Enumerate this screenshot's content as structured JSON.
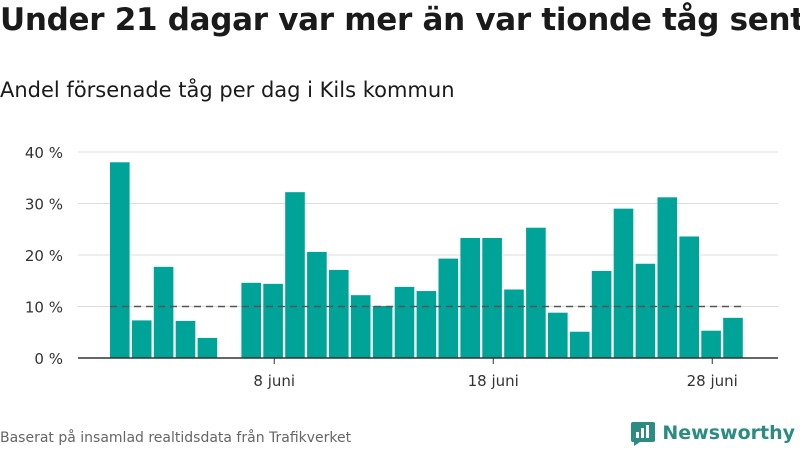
{
  "title": "Under 21 dagar var mer än var tionde tåg sent",
  "subtitle": "Andel försenade tåg per dag i Kils kommun",
  "source": "Baserat på insamlad realtidsdata från Trafikverket",
  "brand": "Newsworthy",
  "colors": {
    "bar": "#00a398",
    "grid": "#dddddd",
    "axis": "#333333",
    "reference": "#555555",
    "brand": "#2b8c81"
  },
  "chart_data": {
    "type": "bar",
    "x_start_day": 1,
    "x_month_label": "juni",
    "x_tick_days": [
      8,
      18,
      28
    ],
    "x_tick_labels": [
      "8 juni",
      "18 juni",
      "28 juni"
    ],
    "values": [
      38,
      7.3,
      17.7,
      7.2,
      3.9,
      null,
      14.6,
      14.4,
      32.2,
      20.6,
      17.1,
      12.2,
      10.1,
      13.8,
      13.0,
      19.3,
      23.3,
      23.3,
      13.3,
      25.3,
      8.8,
      5.1,
      16.9,
      29.0,
      18.3,
      31.2,
      23.6,
      5.3,
      7.8
    ],
    "ylim": [
      0,
      40
    ],
    "y_ticks": [
      0,
      10,
      20,
      30,
      40
    ],
    "y_tick_labels": [
      "0 %",
      "10 %",
      "20 %",
      "30 %",
      "40 %"
    ],
    "reference_line": 10,
    "grid": true,
    "xlabel": "",
    "ylabel": ""
  }
}
